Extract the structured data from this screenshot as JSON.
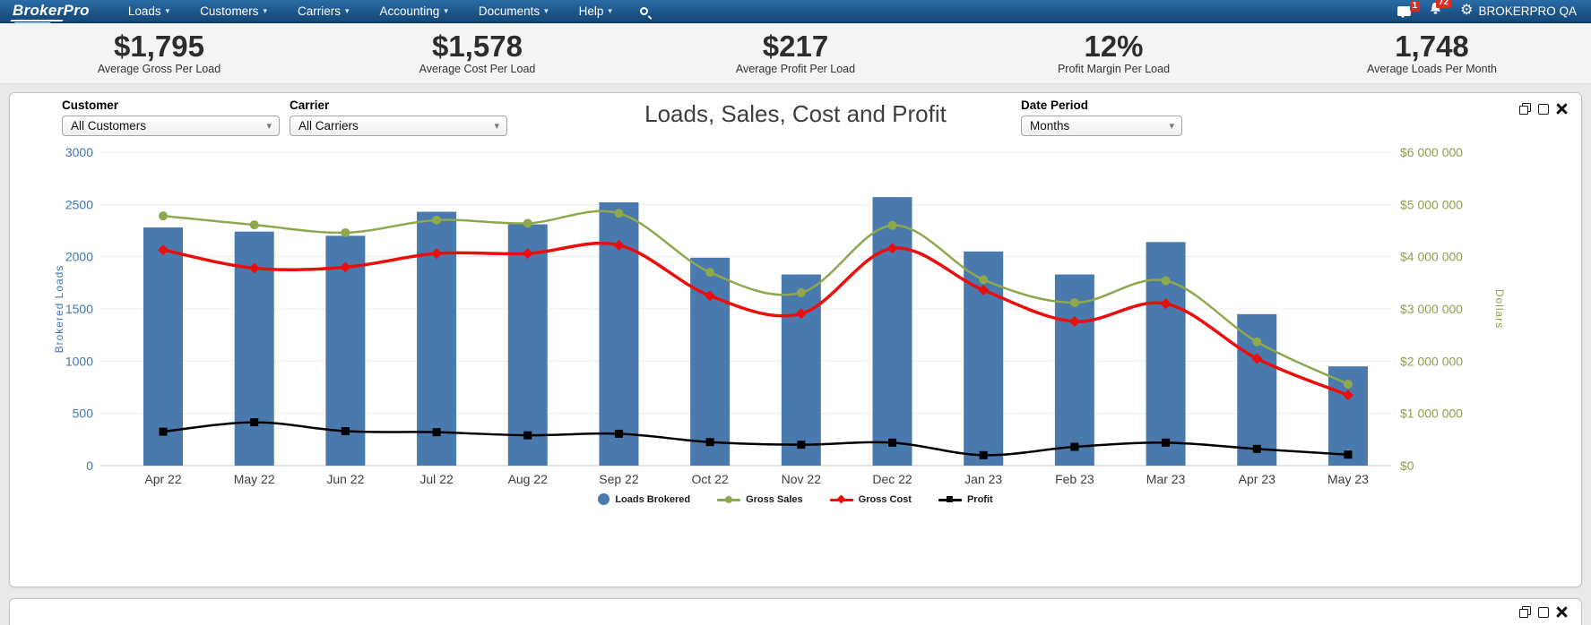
{
  "navbar": {
    "logo": "BrokerPro",
    "menu": [
      {
        "label": "Loads"
      },
      {
        "label": "Customers"
      },
      {
        "label": "Carriers"
      },
      {
        "label": "Accounting"
      },
      {
        "label": "Documents"
      },
      {
        "label": "Help"
      }
    ],
    "right": {
      "messages_badge": "1",
      "alerts_badge": "72",
      "account": "BROKERPRO QA"
    }
  },
  "kpis": [
    {
      "value": "$1,795",
      "label": "Average Gross Per Load"
    },
    {
      "value": "$1,578",
      "label": "Average Cost Per Load"
    },
    {
      "value": "$217",
      "label": "Average Profit Per Load"
    },
    {
      "value": "12%",
      "label": "Profit Margin Per Load"
    },
    {
      "value": "1,748",
      "label": "Average Loads Per Month"
    }
  ],
  "panel": {
    "title": "Loads, Sales, Cost and Profit",
    "filters": {
      "customer_label": "Customer",
      "customer_value": "All Customers",
      "carrier_label": "Carrier",
      "carrier_value": "All Carriers",
      "date_period_label": "Date Period",
      "date_period_value": "Months"
    },
    "window_icons": [
      "copy",
      "maximize",
      "close"
    ]
  },
  "chart_data": {
    "type": "bar",
    "title": "Loads, Sales, Cost and Profit",
    "categories": [
      "Apr 22",
      "May 22",
      "Jun 22",
      "Jul 22",
      "Aug 22",
      "Sep 22",
      "Oct 22",
      "Nov 22",
      "Dec 22",
      "Jan 23",
      "Feb 23",
      "Mar 23",
      "Apr 23",
      "May 23"
    ],
    "series": [
      {
        "name": "Loads Brokered",
        "type": "bar",
        "axis": "left",
        "marker": "circle",
        "color": "#4a79ad",
        "values": [
          2280,
          2240,
          2200,
          2430,
          2310,
          2520,
          1990,
          1830,
          2570,
          2050,
          1830,
          2140,
          1450,
          950
        ]
      },
      {
        "name": "Gross Sales",
        "type": "line",
        "axis": "right",
        "marker": "circle",
        "color": "#8fa84e",
        "values": [
          4780000,
          4610000,
          4460000,
          4700000,
          4640000,
          4830000,
          3700000,
          3310000,
          4600000,
          3560000,
          3120000,
          3540000,
          2370000,
          1560000
        ]
      },
      {
        "name": "Gross Cost",
        "type": "line",
        "axis": "right",
        "marker": "diamond",
        "color": "#ec0d0d",
        "values": [
          4130000,
          3780000,
          3800000,
          4060000,
          4060000,
          4220000,
          3250000,
          2910000,
          4160000,
          3360000,
          2760000,
          3100000,
          2050000,
          1350000
        ]
      },
      {
        "name": "Profit",
        "type": "line",
        "axis": "right",
        "marker": "square",
        "color": "#000000",
        "values": [
          650000,
          830000,
          660000,
          640000,
          580000,
          610000,
          450000,
          400000,
          440000,
          200000,
          360000,
          440000,
          320000,
          210000
        ]
      }
    ],
    "left_axis": {
      "label": "Brokered Loads",
      "min": 0,
      "max": 3000,
      "tick_step": 500,
      "color": "#4076b4"
    },
    "right_axis": {
      "label": "Dollars",
      "min": 0,
      "max": 6000000,
      "tick_step": 1000000,
      "color": "#8da04b"
    },
    "left_ticks": [
      0,
      500,
      1000,
      1500,
      2000,
      2500,
      3000
    ],
    "right_ticks": [
      "$0",
      "$1 000 000",
      "$2 000 000",
      "$3 000 000",
      "$4 000 000",
      "$5 000 000",
      "$6 000 000"
    ],
    "grid": true,
    "legend_position": "bottom"
  },
  "bottom_panel": {
    "window_icons": [
      "copy",
      "maximize",
      "close"
    ]
  }
}
